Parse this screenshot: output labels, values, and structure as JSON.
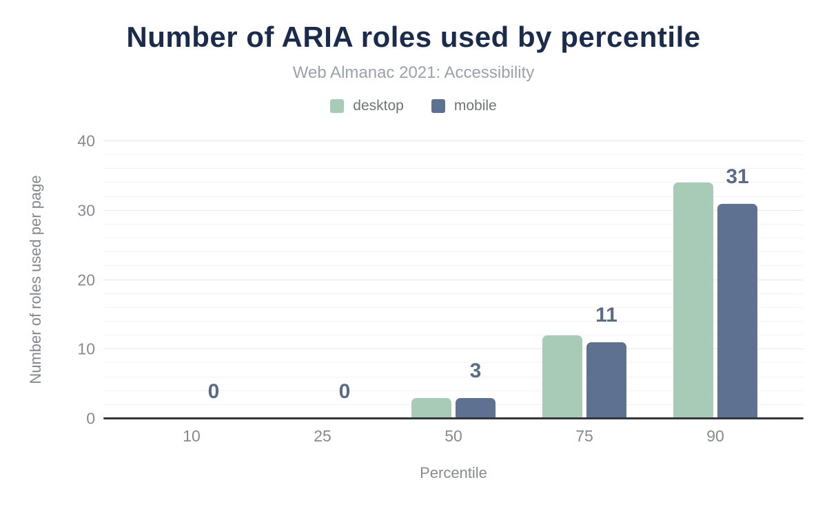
{
  "chart_data": {
    "type": "bar",
    "title": "Number of ARIA roles used by percentile",
    "subtitle": "Web Almanac 2021: Accessibility",
    "xlabel": "Percentile",
    "ylabel": "Number of roles used per page",
    "categories": [
      "10",
      "25",
      "50",
      "75",
      "90"
    ],
    "series": [
      {
        "name": "desktop",
        "color": "#a8cbb8",
        "values": [
          0,
          0,
          3,
          12,
          34
        ]
      },
      {
        "name": "mobile",
        "color": "#5e7191",
        "values": [
          0,
          0,
          3,
          11,
          31
        ]
      }
    ],
    "data_labels": {
      "labeled_series": "mobile",
      "values": [
        "0",
        "0",
        "3",
        "11",
        "31"
      ],
      "color": "#5a6b88"
    },
    "ylim": [
      0,
      40
    ],
    "yticks": [
      0,
      10,
      20,
      30,
      40
    ],
    "minor_grid_step": 2,
    "grid": true,
    "legend_position": "top"
  },
  "colors": {
    "title": "#1b2b4b",
    "subtitle": "#9aa1a9",
    "axis_line": "#33363b",
    "tick_label": "#87898d",
    "major_gridline": "#e5e7e9",
    "minor_gridline": "#f4f4f5",
    "background": "#ffffff"
  }
}
